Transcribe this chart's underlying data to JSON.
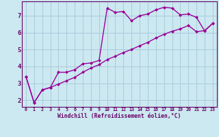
{
  "xlabel": "Windchill (Refroidissement éolien,°C)",
  "background_color": "#cce8f0",
  "line_color": "#990099",
  "grid_color": "#aaccdd",
  "text_color": "#660066",
  "x_ticks": [
    0,
    1,
    2,
    3,
    4,
    5,
    6,
    7,
    8,
    9,
    10,
    11,
    12,
    13,
    14,
    15,
    16,
    17,
    18,
    19,
    20,
    21,
    22,
    23
  ],
  "y_ticks": [
    2,
    3,
    4,
    5,
    6,
    7
  ],
  "ylim": [
    1.6,
    7.85
  ],
  "xlim": [
    -0.5,
    23.5
  ],
  "series1_x": [
    0,
    1,
    2,
    3,
    4,
    5,
    6,
    7,
    8,
    9,
    10,
    11,
    12,
    13,
    14,
    15,
    16,
    17,
    18,
    19,
    20,
    21,
    22,
    23
  ],
  "series1_y": [
    3.4,
    1.85,
    2.6,
    2.75,
    3.65,
    3.65,
    3.8,
    4.15,
    4.2,
    4.35,
    7.45,
    7.2,
    7.25,
    6.7,
    7.0,
    7.1,
    7.35,
    7.5,
    7.45,
    7.05,
    7.1,
    6.9,
    6.1,
    6.55
  ],
  "series2_x": [
    0,
    1,
    2,
    3,
    4,
    5,
    6,
    7,
    8,
    9,
    10,
    11,
    12,
    13,
    14,
    15,
    16,
    17,
    18,
    19,
    20,
    21,
    22,
    23
  ],
  "series2_y": [
    3.4,
    1.85,
    2.6,
    2.75,
    2.95,
    3.15,
    3.35,
    3.65,
    3.9,
    4.1,
    4.4,
    4.6,
    4.82,
    5.0,
    5.22,
    5.42,
    5.68,
    5.9,
    6.08,
    6.22,
    6.42,
    6.05,
    6.12,
    6.55
  ],
  "markersize": 2.5,
  "linewidth": 1.0,
  "font_family": "monospace"
}
